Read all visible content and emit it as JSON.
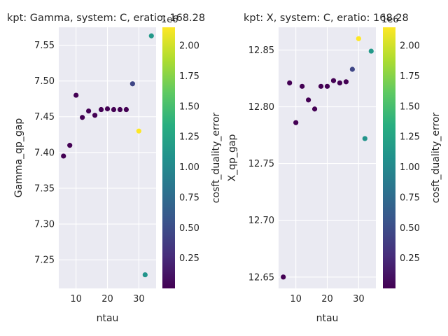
{
  "chart_data": [
    {
      "type": "scatter",
      "title": "kpt: Gamma, system: C, eratio: 168.28",
      "xlabel": "ntau",
      "ylabel": "Gamma_qp_gap",
      "xlim": [
        4.5,
        35.5
      ],
      "ylim": [
        7.21,
        7.575
      ],
      "xticks": [
        10,
        20,
        30
      ],
      "yticks": [
        7.25,
        7.3,
        7.35,
        7.4,
        7.45,
        7.5,
        7.55
      ],
      "grid": true,
      "points": [
        {
          "x": 6,
          "y": 7.395,
          "c": 0.0
        },
        {
          "x": 8,
          "y": 7.41,
          "c": 0.0
        },
        {
          "x": 10,
          "y": 7.48,
          "c": 0.0
        },
        {
          "x": 12,
          "y": 7.449,
          "c": 0.0
        },
        {
          "x": 14,
          "y": 7.458,
          "c": 0.0
        },
        {
          "x": 16,
          "y": 7.452,
          "c": 0.0
        },
        {
          "x": 18,
          "y": 7.46,
          "c": 0.0
        },
        {
          "x": 20,
          "y": 7.461,
          "c": 0.0
        },
        {
          "x": 22,
          "y": 7.46,
          "c": 0.0
        },
        {
          "x": 24,
          "y": 7.46,
          "c": 0.0
        },
        {
          "x": 26,
          "y": 7.46,
          "c": 0.0
        },
        {
          "x": 28,
          "y": 7.496,
          "c": 0.45
        },
        {
          "x": 30,
          "y": 7.43,
          "c": 2.15
        },
        {
          "x": 32,
          "y": 7.229,
          "c": 1.1
        },
        {
          "x": 34,
          "y": 7.563,
          "c": 1.15
        }
      ],
      "colorbar": {
        "label": "cosft_duality_error",
        "offset_label": "1e6",
        "cmap": "viridis",
        "clim": [
          0.0,
          2.15
        ],
        "ticks": [
          0.25,
          0.5,
          0.75,
          1.0,
          1.25,
          1.5,
          1.75,
          2.0
        ],
        "tick_labels": [
          "0.25",
          "0.50",
          "0.75",
          "1.00",
          "1.25",
          "1.50",
          "1.75",
          "2.00"
        ]
      }
    },
    {
      "type": "scatter",
      "title": "kpt: X, system: C, eratio: 168.28",
      "xlabel": "ntau",
      "ylabel": "X_qp_gap",
      "xlim": [
        4.5,
        35.5
      ],
      "ylim": [
        12.64,
        12.87
      ],
      "xticks": [
        10,
        20,
        30
      ],
      "yticks": [
        12.65,
        12.7,
        12.75,
        12.8,
        12.85
      ],
      "grid": true,
      "points": [
        {
          "x": 6,
          "y": 12.65,
          "c": 0.0
        },
        {
          "x": 8,
          "y": 12.821,
          "c": 0.0
        },
        {
          "x": 10,
          "y": 12.786,
          "c": 0.0
        },
        {
          "x": 12,
          "y": 12.818,
          "c": 0.0
        },
        {
          "x": 14,
          "y": 12.806,
          "c": 0.0
        },
        {
          "x": 16,
          "y": 12.798,
          "c": 0.0
        },
        {
          "x": 18,
          "y": 12.818,
          "c": 0.0
        },
        {
          "x": 20,
          "y": 12.818,
          "c": 0.0
        },
        {
          "x": 22,
          "y": 12.823,
          "c": 0.0
        },
        {
          "x": 24,
          "y": 12.821,
          "c": 0.0
        },
        {
          "x": 26,
          "y": 12.822,
          "c": 0.0
        },
        {
          "x": 28,
          "y": 12.833,
          "c": 0.45
        },
        {
          "x": 30,
          "y": 12.86,
          "c": 2.15
        },
        {
          "x": 32,
          "y": 12.772,
          "c": 1.1
        },
        {
          "x": 34,
          "y": 12.849,
          "c": 1.15
        }
      ],
      "colorbar": {
        "label": "cosft_duality_error",
        "offset_label": "1e6",
        "cmap": "viridis",
        "clim": [
          0.0,
          2.15
        ],
        "ticks": [
          0.25,
          0.5,
          0.75,
          1.0,
          1.25,
          1.5,
          1.75,
          2.0
        ],
        "tick_labels": [
          "0.25",
          "0.50",
          "0.75",
          "1.00",
          "1.25",
          "1.50",
          "1.75",
          "2.00"
        ]
      }
    }
  ]
}
